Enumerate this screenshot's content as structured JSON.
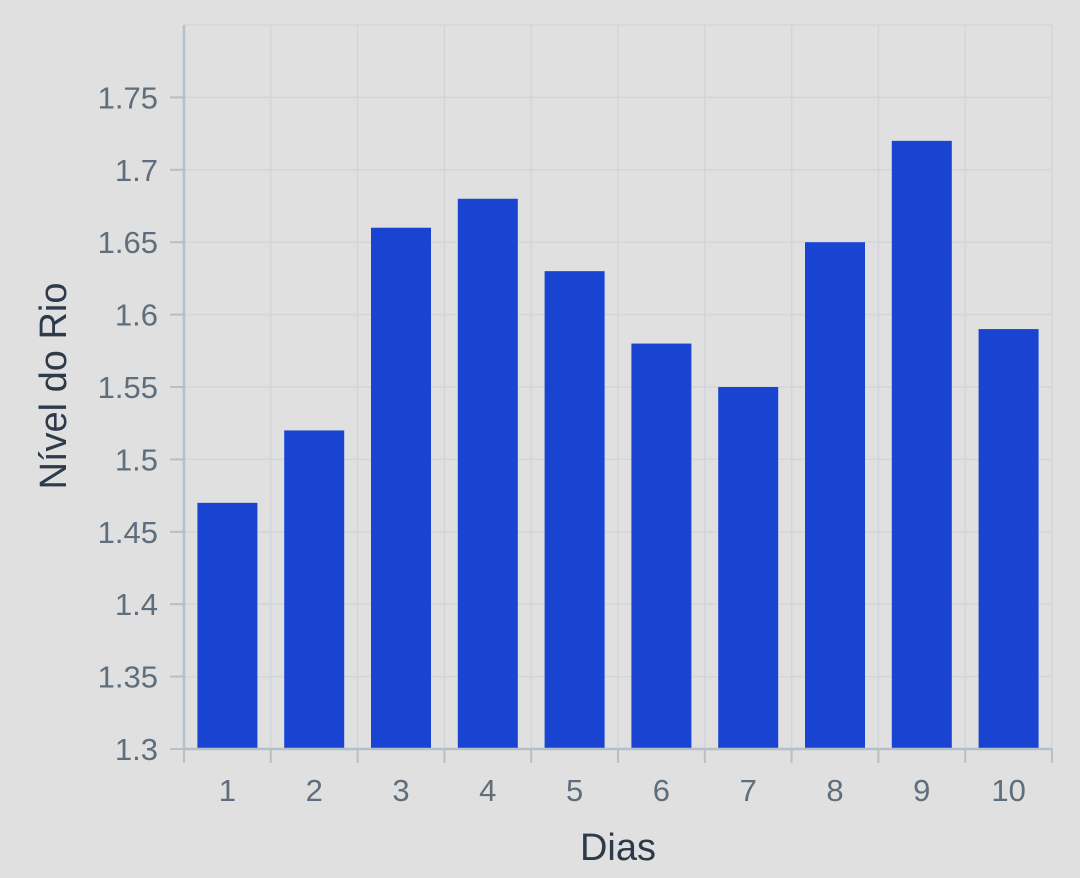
{
  "chart_data": {
    "type": "bar",
    "title": "",
    "xlabel": "Dias",
    "ylabel": "Nível do Rio",
    "categories": [
      "1",
      "2",
      "3",
      "4",
      "5",
      "6",
      "7",
      "8",
      "9",
      "10"
    ],
    "values": [
      1.47,
      1.52,
      1.66,
      1.68,
      1.63,
      1.58,
      1.55,
      1.65,
      1.72,
      1.59
    ],
    "ylim": [
      1.3,
      1.8
    ],
    "yticks": [
      "1.3",
      "1.35",
      "1.4",
      "1.45",
      "1.5",
      "1.55",
      "1.6",
      "1.65",
      "1.7",
      "1.75"
    ],
    "grid": true,
    "colors": {
      "bar": "#1944d2",
      "background": "#e0e0e0",
      "grid": "#d2d6da",
      "axis": "#b4bfc8"
    }
  }
}
